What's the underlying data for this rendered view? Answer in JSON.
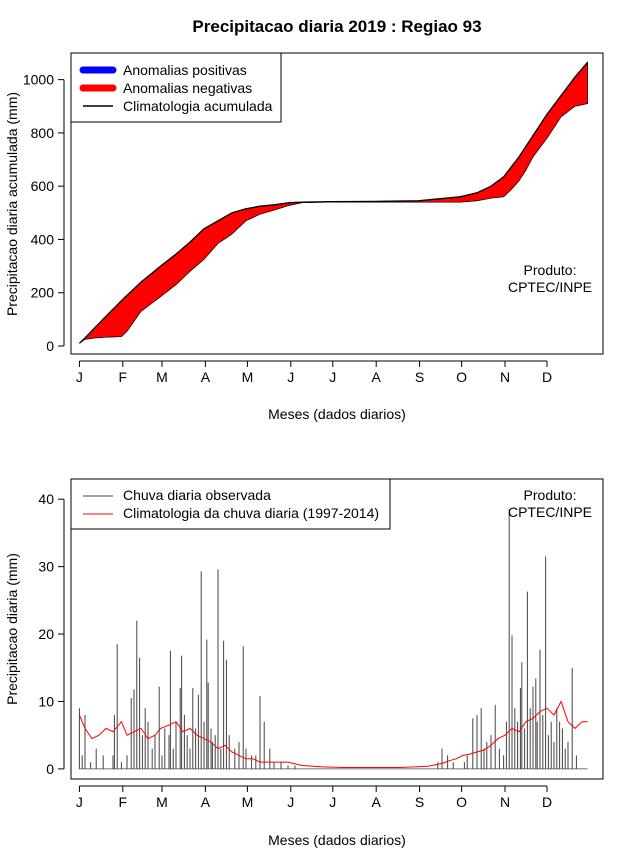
{
  "title": "Precipitacao diaria 2019 : Regiao 93",
  "chart_data": [
    {
      "type": "area",
      "id": "accumulated",
      "ylabel": "Precipitacao diaria acumulada (mm)",
      "xlabel": "Meses (dados diarios)",
      "x_ticks": [
        "J",
        "F",
        "M",
        "A",
        "M",
        "J",
        "J",
        "A",
        "S",
        "O",
        "N",
        "D"
      ],
      "y_ticks": [
        0,
        200,
        400,
        600,
        800,
        1000
      ],
      "ylim": [
        -30,
        1100
      ],
      "xlim": [
        -5,
        375
      ],
      "legend": {
        "position": "top-left",
        "items": [
          {
            "label": "Anomalias positivas",
            "color": "#0000ff"
          },
          {
            "label": "Anomalias negativas",
            "color": "#ff0000"
          },
          {
            "label": "Climatologia acumulada",
            "color": "#000000"
          }
        ]
      },
      "annotation": [
        "Produto:",
        "CPTEC/INPE"
      ],
      "climatology": {
        "x": [
          1,
          5,
          15,
          31,
          45,
          59,
          70,
          80,
          90,
          100,
          110,
          120,
          130,
          140,
          151,
          160,
          181,
          212,
          243,
          273,
          285,
          295,
          304,
          315,
          325,
          335,
          345,
          355,
          364
        ],
        "y": [
          10,
          30,
          85,
          170,
          240,
          300,
          345,
          390,
          440,
          470,
          500,
          515,
          525,
          530,
          538,
          540,
          542,
          543,
          545,
          560,
          575,
          600,
          635,
          710,
          790,
          870,
          940,
          1010,
          1065
        ]
      },
      "observed": {
        "x": [
          1,
          5,
          12,
          20,
          31,
          35,
          45,
          59,
          70,
          80,
          90,
          100,
          110,
          120,
          130,
          140,
          151,
          160,
          181,
          212,
          243,
          273,
          285,
          295,
          304,
          310,
          315,
          320,
          325,
          335,
          345,
          355,
          364
        ],
        "y": [
          10,
          25,
          30,
          33,
          35,
          55,
          130,
          185,
          230,
          280,
          325,
          385,
          420,
          470,
          495,
          510,
          528,
          538,
          540,
          540,
          540,
          540,
          545,
          555,
          560,
          590,
          620,
          660,
          710,
          780,
          860,
          900,
          910
        ]
      }
    },
    {
      "type": "bar",
      "id": "daily",
      "ylabel": "Precipitacao diaria (mm)",
      "xlabel": "Meses (dados diarios)",
      "x_ticks": [
        "J",
        "F",
        "M",
        "A",
        "M",
        "J",
        "J",
        "A",
        "S",
        "O",
        "N",
        "D"
      ],
      "y_ticks": [
        0,
        10,
        20,
        30,
        40
      ],
      "ylim": [
        -1.5,
        43
      ],
      "xlim": [
        -5,
        375
      ],
      "legend": {
        "position": "top-left",
        "items": [
          {
            "label": "Chuva diaria observada",
            "color": "#444444"
          },
          {
            "label": "Climatologia da chuva diaria (1997-2014)",
            "color": "#ff0000"
          }
        ]
      },
      "annotation": [
        "Produto:",
        "CPTEC/INPE"
      ],
      "observed_series": {
        "name": "Chuva diaria observada",
        "x": [
          1,
          3,
          5,
          9,
          13,
          18,
          25,
          26,
          28,
          31,
          35,
          38,
          40,
          42,
          44,
          46,
          48,
          50,
          53,
          55,
          58,
          60,
          62,
          65,
          66,
          68,
          70,
          73,
          74,
          76,
          78,
          80,
          82,
          84,
          86,
          88,
          90,
          92,
          93,
          95,
          96,
          98,
          100,
          102,
          104,
          106,
          108,
          112,
          115,
          118,
          120,
          124,
          127,
          130,
          133,
          137,
          140,
          145,
          150,
          155,
          257,
          260,
          264,
          268,
          276,
          278,
          282,
          285,
          288,
          290,
          292,
          295,
          298,
          301,
          304,
          306,
          308,
          310,
          312,
          314,
          316,
          317,
          319,
          321,
          323,
          325,
          327,
          328,
          330,
          332,
          334,
          336,
          338,
          340,
          342,
          344,
          346,
          348,
          350,
          353,
          356
        ],
        "values": [
          9,
          2,
          8,
          1,
          3,
          2,
          2,
          8,
          18.5,
          1,
          2,
          10.5,
          11.8,
          22,
          16.5,
          5,
          9,
          7,
          3,
          5,
          12.2,
          2,
          6,
          5,
          17.5,
          3,
          7,
          12,
          16.8,
          8,
          5,
          3,
          12,
          6,
          11,
          29.3,
          7,
          19.2,
          12.8,
          6,
          4,
          5,
          29.6,
          3,
          19,
          16.2,
          5,
          3,
          4,
          18.2,
          3,
          2,
          2,
          10.8,
          7,
          3,
          1,
          1,
          0.5,
          0.5,
          1,
          3,
          2,
          1,
          1,
          2,
          7.5,
          8,
          9,
          3,
          4,
          5,
          9.5,
          3,
          2,
          7,
          38.5,
          19.8,
          9,
          7,
          12,
          15.8,
          6,
          26.3,
          9,
          12.2,
          13.4,
          7,
          17.7,
          8,
          31.5,
          5,
          7,
          4,
          9,
          7,
          6,
          3,
          4,
          15,
          2
        ]
      },
      "climatology_series": {
        "name": "Climatologia da chuva diaria (1997-2014)",
        "x": [
          1,
          5,
          10,
          15,
          20,
          25,
          31,
          35,
          40,
          45,
          50,
          55,
          59,
          65,
          70,
          75,
          80,
          85,
          90,
          95,
          100,
          105,
          110,
          115,
          120,
          125,
          130,
          140,
          150,
          160,
          175,
          190,
          210,
          230,
          250,
          260,
          265,
          270,
          275,
          280,
          285,
          290,
          295,
          300,
          305,
          310,
          315,
          320,
          325,
          330,
          335,
          340,
          345,
          350,
          355,
          360,
          364
        ],
        "values": [
          8,
          6,
          4.5,
          5,
          6,
          5.5,
          7,
          5,
          5.5,
          6,
          4.5,
          5,
          6,
          6.5,
          7,
          5.5,
          6,
          5,
          4.5,
          4,
          3,
          3.5,
          2.5,
          2,
          1.5,
          1.5,
          1,
          1,
          1,
          0.5,
          0.3,
          0.2,
          0.2,
          0.2,
          0.4,
          0.8,
          1.2,
          1.5,
          2,
          2.2,
          2.5,
          2.8,
          3.5,
          4.5,
          5,
          6,
          5.5,
          7,
          7.5,
          8.5,
          9,
          8,
          10,
          7,
          6,
          7,
          7
        ]
      }
    }
  ]
}
